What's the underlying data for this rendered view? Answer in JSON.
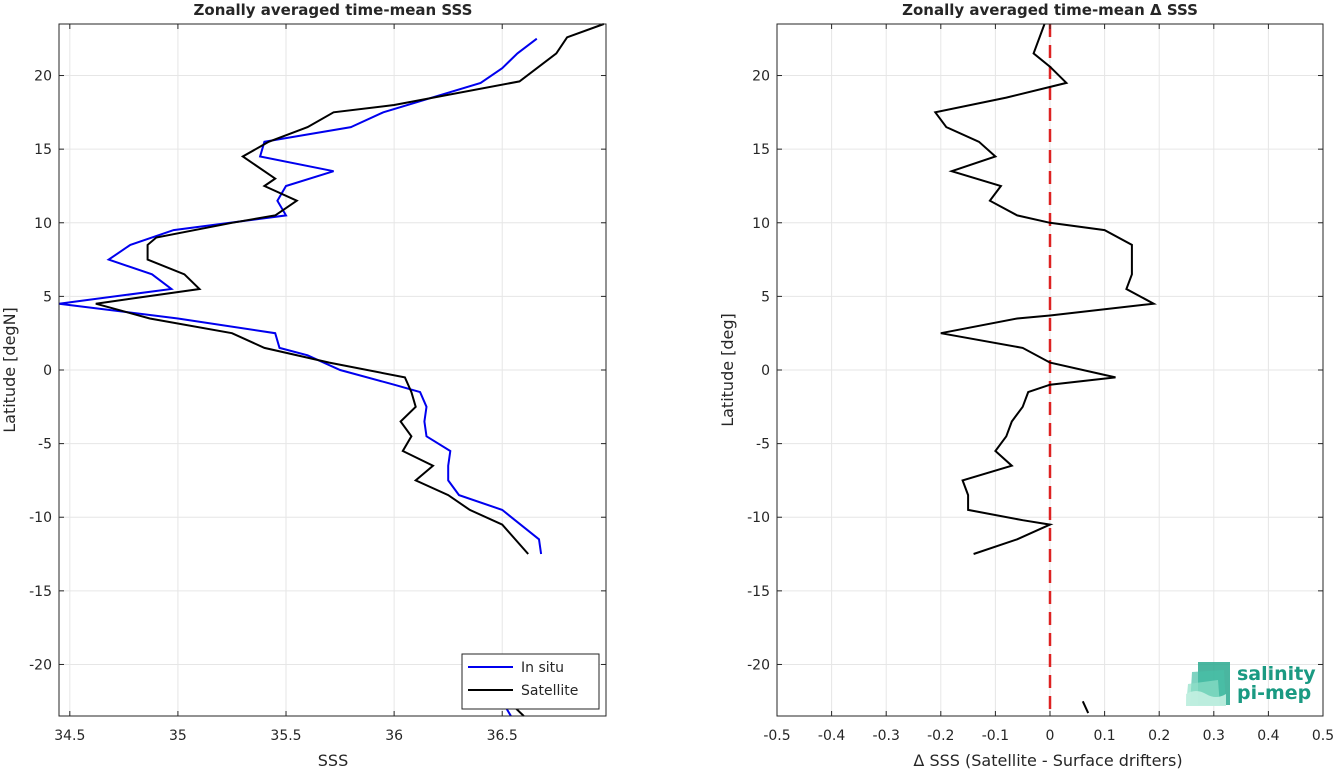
{
  "chart_data": [
    {
      "type": "line",
      "title": "Zonally averaged time-mean SSS",
      "xlabel": "SSS",
      "ylabel": "Latitude [degN]",
      "xlim": [
        34.45,
        36.98
      ],
      "ylim": [
        -23.5,
        23.5
      ],
      "xticks": [
        34.5,
        35,
        35.5,
        36,
        36.5
      ],
      "xtick_labels": [
        "34.5",
        "35",
        "35.5",
        "36",
        "36.5"
      ],
      "yticks": [
        -20,
        -15,
        -10,
        -5,
        0,
        5,
        10,
        15,
        20
      ],
      "ytick_labels": [
        "-20",
        "-15",
        "-10",
        "-5",
        "0",
        "5",
        "10",
        "15",
        "20"
      ],
      "grid": true,
      "legend": "bottom-right",
      "series": [
        {
          "name": "In situ",
          "color": "#0000ee",
          "segments": [
            [
              [
                36.66,
                22.5
              ],
              [
                36.57,
                21.5
              ],
              [
                36.5,
                20.5
              ],
              [
                36.4,
                19.5
              ],
              [
                35.95,
                17.5
              ],
              [
                35.8,
                16.5
              ],
              [
                35.4,
                15.5
              ],
              [
                35.38,
                14.5
              ],
              [
                35.72,
                13.5
              ],
              [
                35.5,
                12.5
              ],
              [
                35.46,
                11.5
              ],
              [
                35.5,
                10.5
              ],
              [
                34.98,
                9.5
              ],
              [
                34.78,
                8.5
              ],
              [
                34.68,
                7.5
              ],
              [
                34.88,
                6.5
              ],
              [
                34.97,
                5.5
              ],
              [
                34.45,
                4.5
              ],
              [
                35.0,
                3.5
              ],
              [
                35.45,
                2.5
              ],
              [
                35.47,
                1.5
              ],
              [
                35.6,
                1.0
              ],
              [
                35.75,
                0.0
              ],
              [
                36.0,
                -1.0
              ],
              [
                36.12,
                -1.5
              ],
              [
                36.15,
                -2.5
              ],
              [
                36.14,
                -3.5
              ],
              [
                36.15,
                -4.5
              ],
              [
                36.26,
                -5.5
              ],
              [
                36.25,
                -6.5
              ],
              [
                36.25,
                -7.5
              ],
              [
                36.3,
                -8.5
              ],
              [
                36.5,
                -9.5
              ],
              [
                36.67,
                -11.5
              ],
              [
                36.68,
                -12.5
              ]
            ],
            [
              [
                36.54,
                -23.5
              ],
              [
                36.5,
                -22.5
              ]
            ]
          ]
        },
        {
          "name": "Satellite",
          "color": "#000000",
          "segments": [
            [
              [
                36.97,
                23.5
              ],
              [
                36.8,
                22.6
              ],
              [
                36.75,
                21.5
              ],
              [
                36.58,
                19.6
              ],
              [
                36.0,
                18.0
              ],
              [
                35.72,
                17.5
              ],
              [
                35.6,
                16.5
              ],
              [
                35.42,
                15.5
              ],
              [
                35.3,
                14.5
              ],
              [
                35.45,
                13.0
              ],
              [
                35.4,
                12.5
              ],
              [
                35.55,
                11.5
              ],
              [
                35.45,
                10.5
              ],
              [
                35.25,
                10.0
              ],
              [
                34.9,
                9.0
              ],
              [
                34.86,
                8.5
              ],
              [
                34.86,
                7.5
              ],
              [
                35.03,
                6.5
              ],
              [
                35.1,
                5.5
              ],
              [
                34.62,
                4.5
              ],
              [
                34.87,
                3.5
              ],
              [
                35.25,
                2.5
              ],
              [
                35.4,
                1.5
              ],
              [
                35.7,
                0.5
              ],
              [
                36.05,
                -0.5
              ],
              [
                36.08,
                -1.5
              ],
              [
                36.1,
                -2.5
              ],
              [
                36.03,
                -3.5
              ],
              [
                36.08,
                -4.5
              ],
              [
                36.04,
                -5.5
              ],
              [
                36.18,
                -6.5
              ],
              [
                36.1,
                -7.5
              ],
              [
                36.25,
                -8.5
              ],
              [
                36.35,
                -9.5
              ],
              [
                36.5,
                -10.5
              ],
              [
                36.62,
                -12.5
              ]
            ],
            [
              [
                36.6,
                -23.5
              ],
              [
                36.55,
                -22.8
              ]
            ]
          ]
        }
      ]
    },
    {
      "type": "line",
      "title": "Zonally averaged time-mean Δ SSS",
      "xlabel": "Δ SSS (Satellite - Surface drifters)",
      "ylabel": "Latitude [deg]",
      "xlim": [
        -0.5,
        0.5
      ],
      "ylim": [
        -23.5,
        23.5
      ],
      "xticks": [
        -0.5,
        -0.4,
        -0.3,
        -0.2,
        -0.1,
        0,
        0.1,
        0.2,
        0.3,
        0.4,
        0.5
      ],
      "xtick_labels": [
        "-0.5",
        "-0.4",
        "-0.3",
        "-0.2",
        "-0.1",
        "0",
        "0.1",
        "0.2",
        "0.3",
        "0.4",
        "0.5"
      ],
      "yticks": [
        -20,
        -15,
        -10,
        -5,
        0,
        5,
        10,
        15,
        20
      ],
      "ytick_labels": [
        "-20",
        "-15",
        "-10",
        "-5",
        "0",
        "5",
        "10",
        "15",
        "20"
      ],
      "grid": true,
      "reference_line": {
        "x": 0,
        "color": "#dd2222",
        "style": "dashed"
      },
      "series": [
        {
          "color": "#000000",
          "segments": [
            [
              [
                -0.01,
                23.5
              ],
              [
                -0.03,
                21.5
              ],
              [
                0.0,
                20.6
              ],
              [
                0.03,
                19.5
              ],
              [
                -0.08,
                18.5
              ],
              [
                -0.21,
                17.5
              ],
              [
                -0.19,
                16.5
              ],
              [
                -0.13,
                15.5
              ],
              [
                -0.1,
                14.5
              ],
              [
                -0.18,
                13.5
              ],
              [
                -0.09,
                12.5
              ],
              [
                -0.11,
                11.5
              ],
              [
                -0.06,
                10.5
              ],
              [
                0.0,
                10.0
              ],
              [
                0.1,
                9.5
              ],
              [
                0.15,
                8.5
              ],
              [
                0.15,
                7.5
              ],
              [
                0.15,
                6.5
              ],
              [
                0.14,
                5.5
              ],
              [
                0.19,
                4.5
              ],
              [
                0.0,
                3.7
              ],
              [
                -0.06,
                3.5
              ],
              [
                -0.2,
                2.5
              ],
              [
                -0.05,
                1.5
              ],
              [
                0.0,
                0.5
              ],
              [
                0.12,
                -0.5
              ],
              [
                0.0,
                -1.0
              ],
              [
                -0.04,
                -1.5
              ],
              [
                -0.05,
                -2.5
              ],
              [
                -0.07,
                -3.5
              ],
              [
                -0.08,
                -4.5
              ],
              [
                -0.1,
                -5.5
              ],
              [
                -0.07,
                -6.5
              ],
              [
                -0.16,
                -7.5
              ],
              [
                -0.15,
                -8.5
              ],
              [
                -0.15,
                -9.5
              ],
              [
                -0.05,
                -10.2
              ],
              [
                0.0,
                -10.5
              ],
              [
                -0.06,
                -11.5
              ],
              [
                -0.14,
                -12.5
              ]
            ],
            [
              [
                0.06,
                -22.5
              ],
              [
                0.07,
                -23.3
              ]
            ]
          ]
        }
      ]
    }
  ],
  "legend": {
    "items": [
      {
        "label": "In situ",
        "color": "#0000ee"
      },
      {
        "label": "Satellite",
        "color": "#000000"
      }
    ]
  },
  "logo": {
    "line1": "salinity",
    "line2": "pi-mep"
  }
}
